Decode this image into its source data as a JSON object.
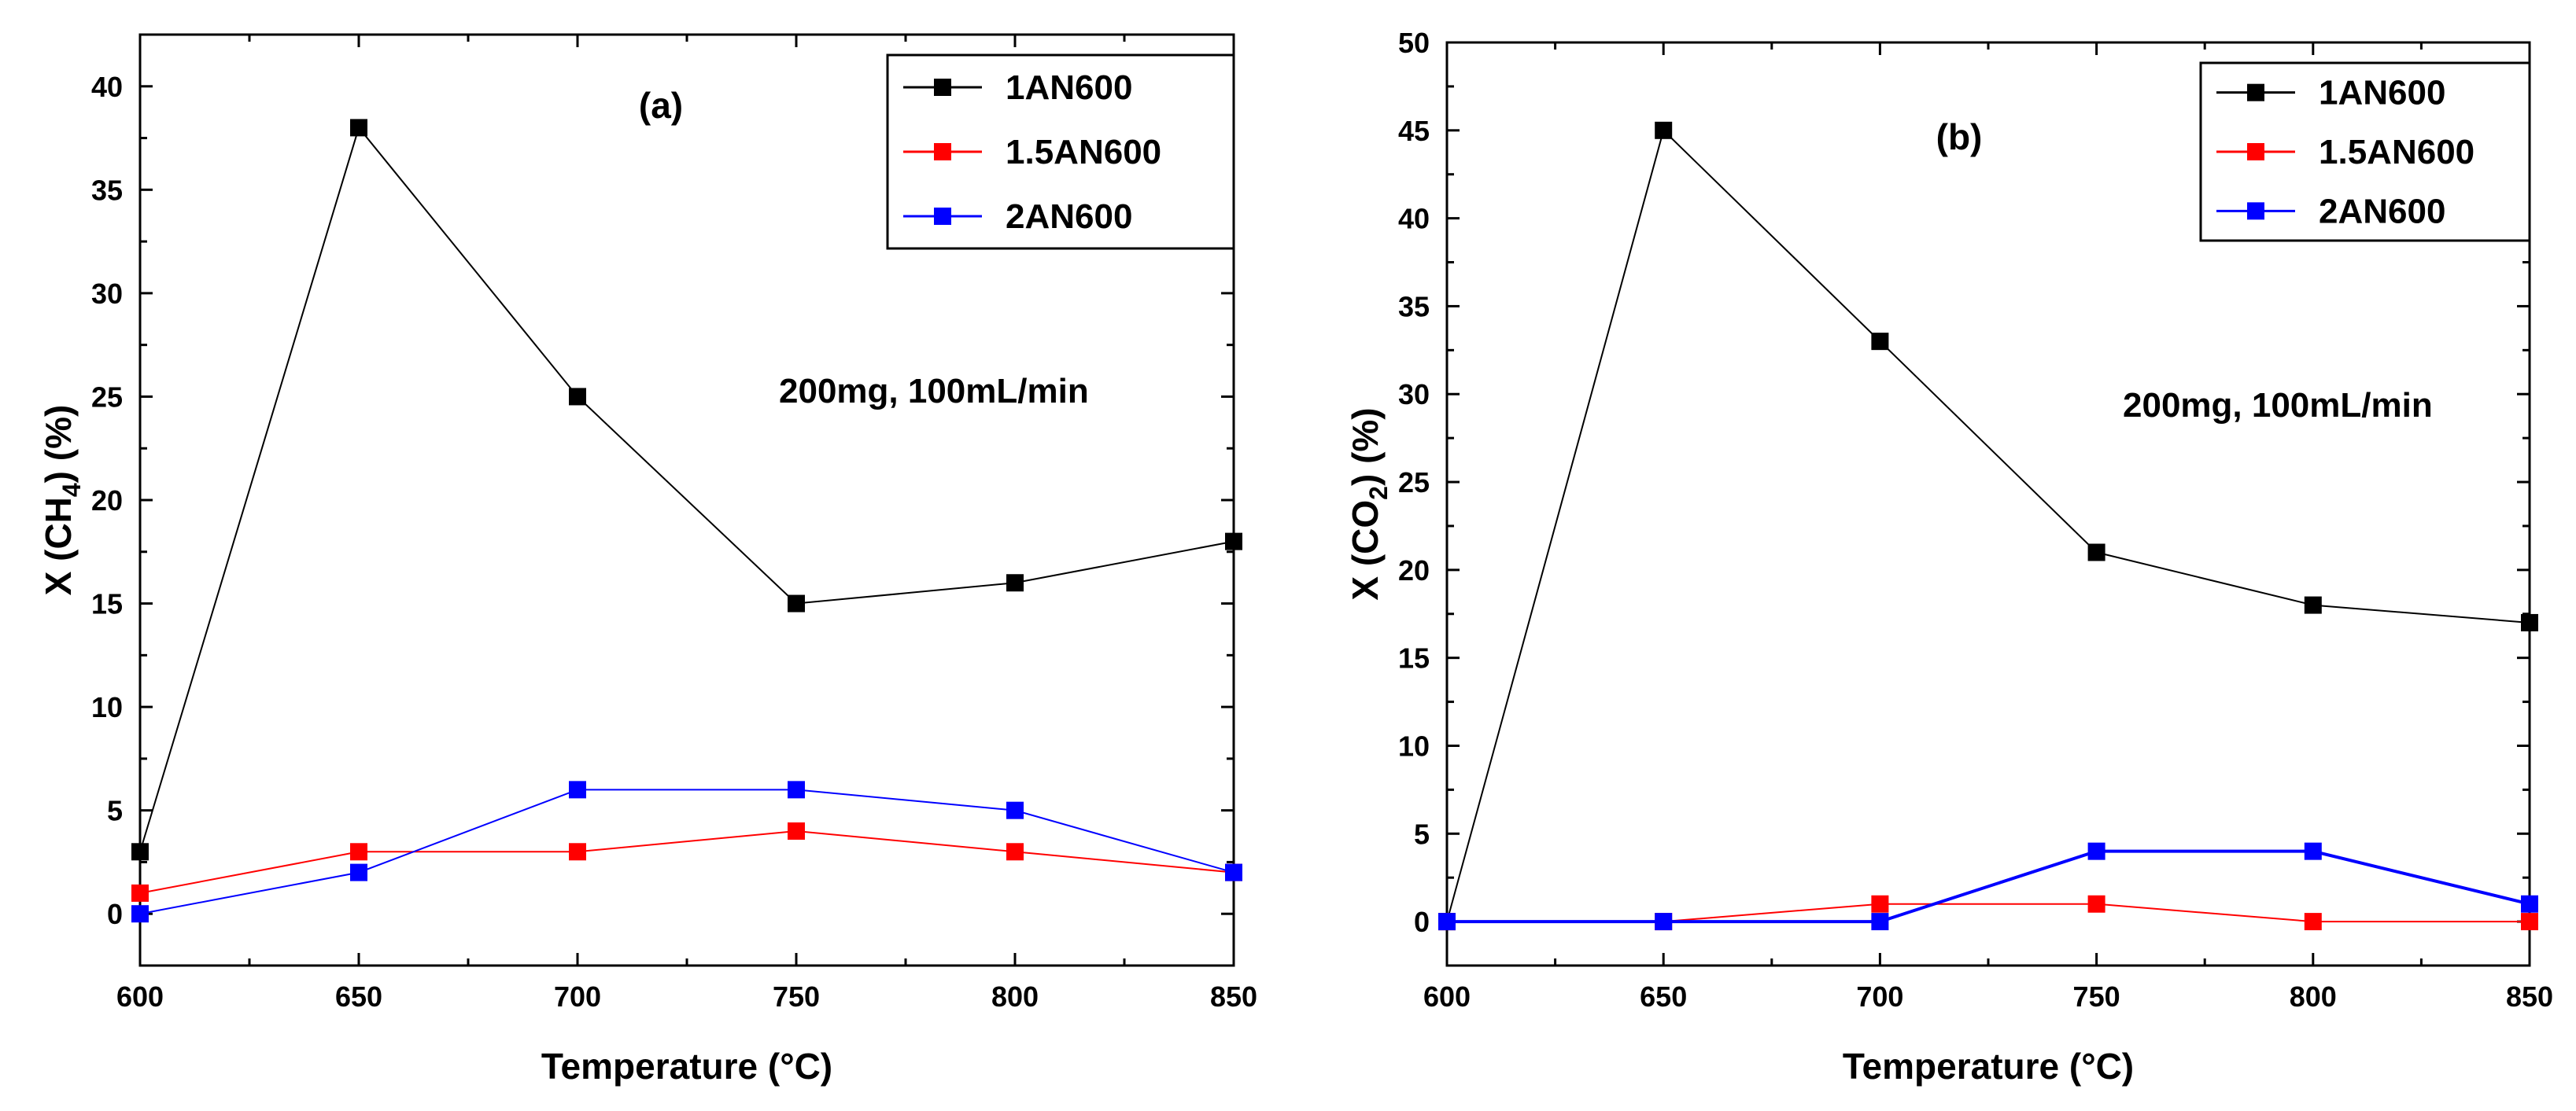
{
  "chart_data": [
    {
      "type": "line",
      "panel_label": "(a)",
      "annotation": "200mg, 100mL/min",
      "xlabel": "Temperature (°C)",
      "ylabel_prefix": "X (CH",
      "ylabel_sub": "4",
      "ylabel_suffix": ") (%)",
      "xlim": [
        600,
        850
      ],
      "ylim": [
        -2.5,
        42.5
      ],
      "xticks": [
        600,
        650,
        700,
        750,
        800,
        850
      ],
      "yticks": [
        0,
        5,
        10,
        15,
        20,
        25,
        30,
        35,
        40
      ],
      "legend_position": "top-right",
      "series": [
        {
          "name": "1AN600",
          "color": "#000000",
          "x": [
            600,
            650,
            700,
            750,
            800,
            850
          ],
          "values": [
            3,
            38,
            25,
            15,
            16,
            18
          ]
        },
        {
          "name": "1.5AN600",
          "color": "#ff0000",
          "x": [
            600,
            650,
            700,
            750,
            800,
            850
          ],
          "values": [
            1,
            3,
            3,
            4,
            3,
            2
          ]
        },
        {
          "name": "2AN600",
          "color": "#0000ff",
          "x": [
            600,
            650,
            700,
            750,
            800,
            850
          ],
          "values": [
            0,
            2,
            6,
            6,
            5,
            2
          ]
        }
      ]
    },
    {
      "type": "line",
      "panel_label": "(b)",
      "annotation": "200mg, 100mL/min",
      "xlabel": "Temperature (°C)",
      "ylabel_prefix": "X (CO",
      "ylabel_sub": "2",
      "ylabel_suffix": ") (%)",
      "xlim": [
        600,
        850
      ],
      "ylim": [
        -2.5,
        50
      ],
      "xticks": [
        600,
        650,
        700,
        750,
        800,
        850
      ],
      "yticks": [
        0,
        5,
        10,
        15,
        20,
        25,
        30,
        35,
        40,
        45,
        50
      ],
      "legend_position": "top-right",
      "series": [
        {
          "name": "1AN600",
          "color": "#000000",
          "x": [
            600,
            650,
            700,
            750,
            800,
            850
          ],
          "values": [
            0,
            45,
            33,
            21,
            18,
            17
          ]
        },
        {
          "name": "1.5AN600",
          "color": "#ff0000",
          "x": [
            600,
            650,
            700,
            750,
            800,
            850
          ],
          "values": [
            0,
            0,
            1,
            1,
            0,
            0
          ]
        },
        {
          "name": "2AN600",
          "color": "#0000ff",
          "x": [
            600,
            650,
            700,
            750,
            800,
            850
          ],
          "values": [
            0,
            0,
            0,
            4,
            4,
            1
          ]
        }
      ]
    }
  ]
}
